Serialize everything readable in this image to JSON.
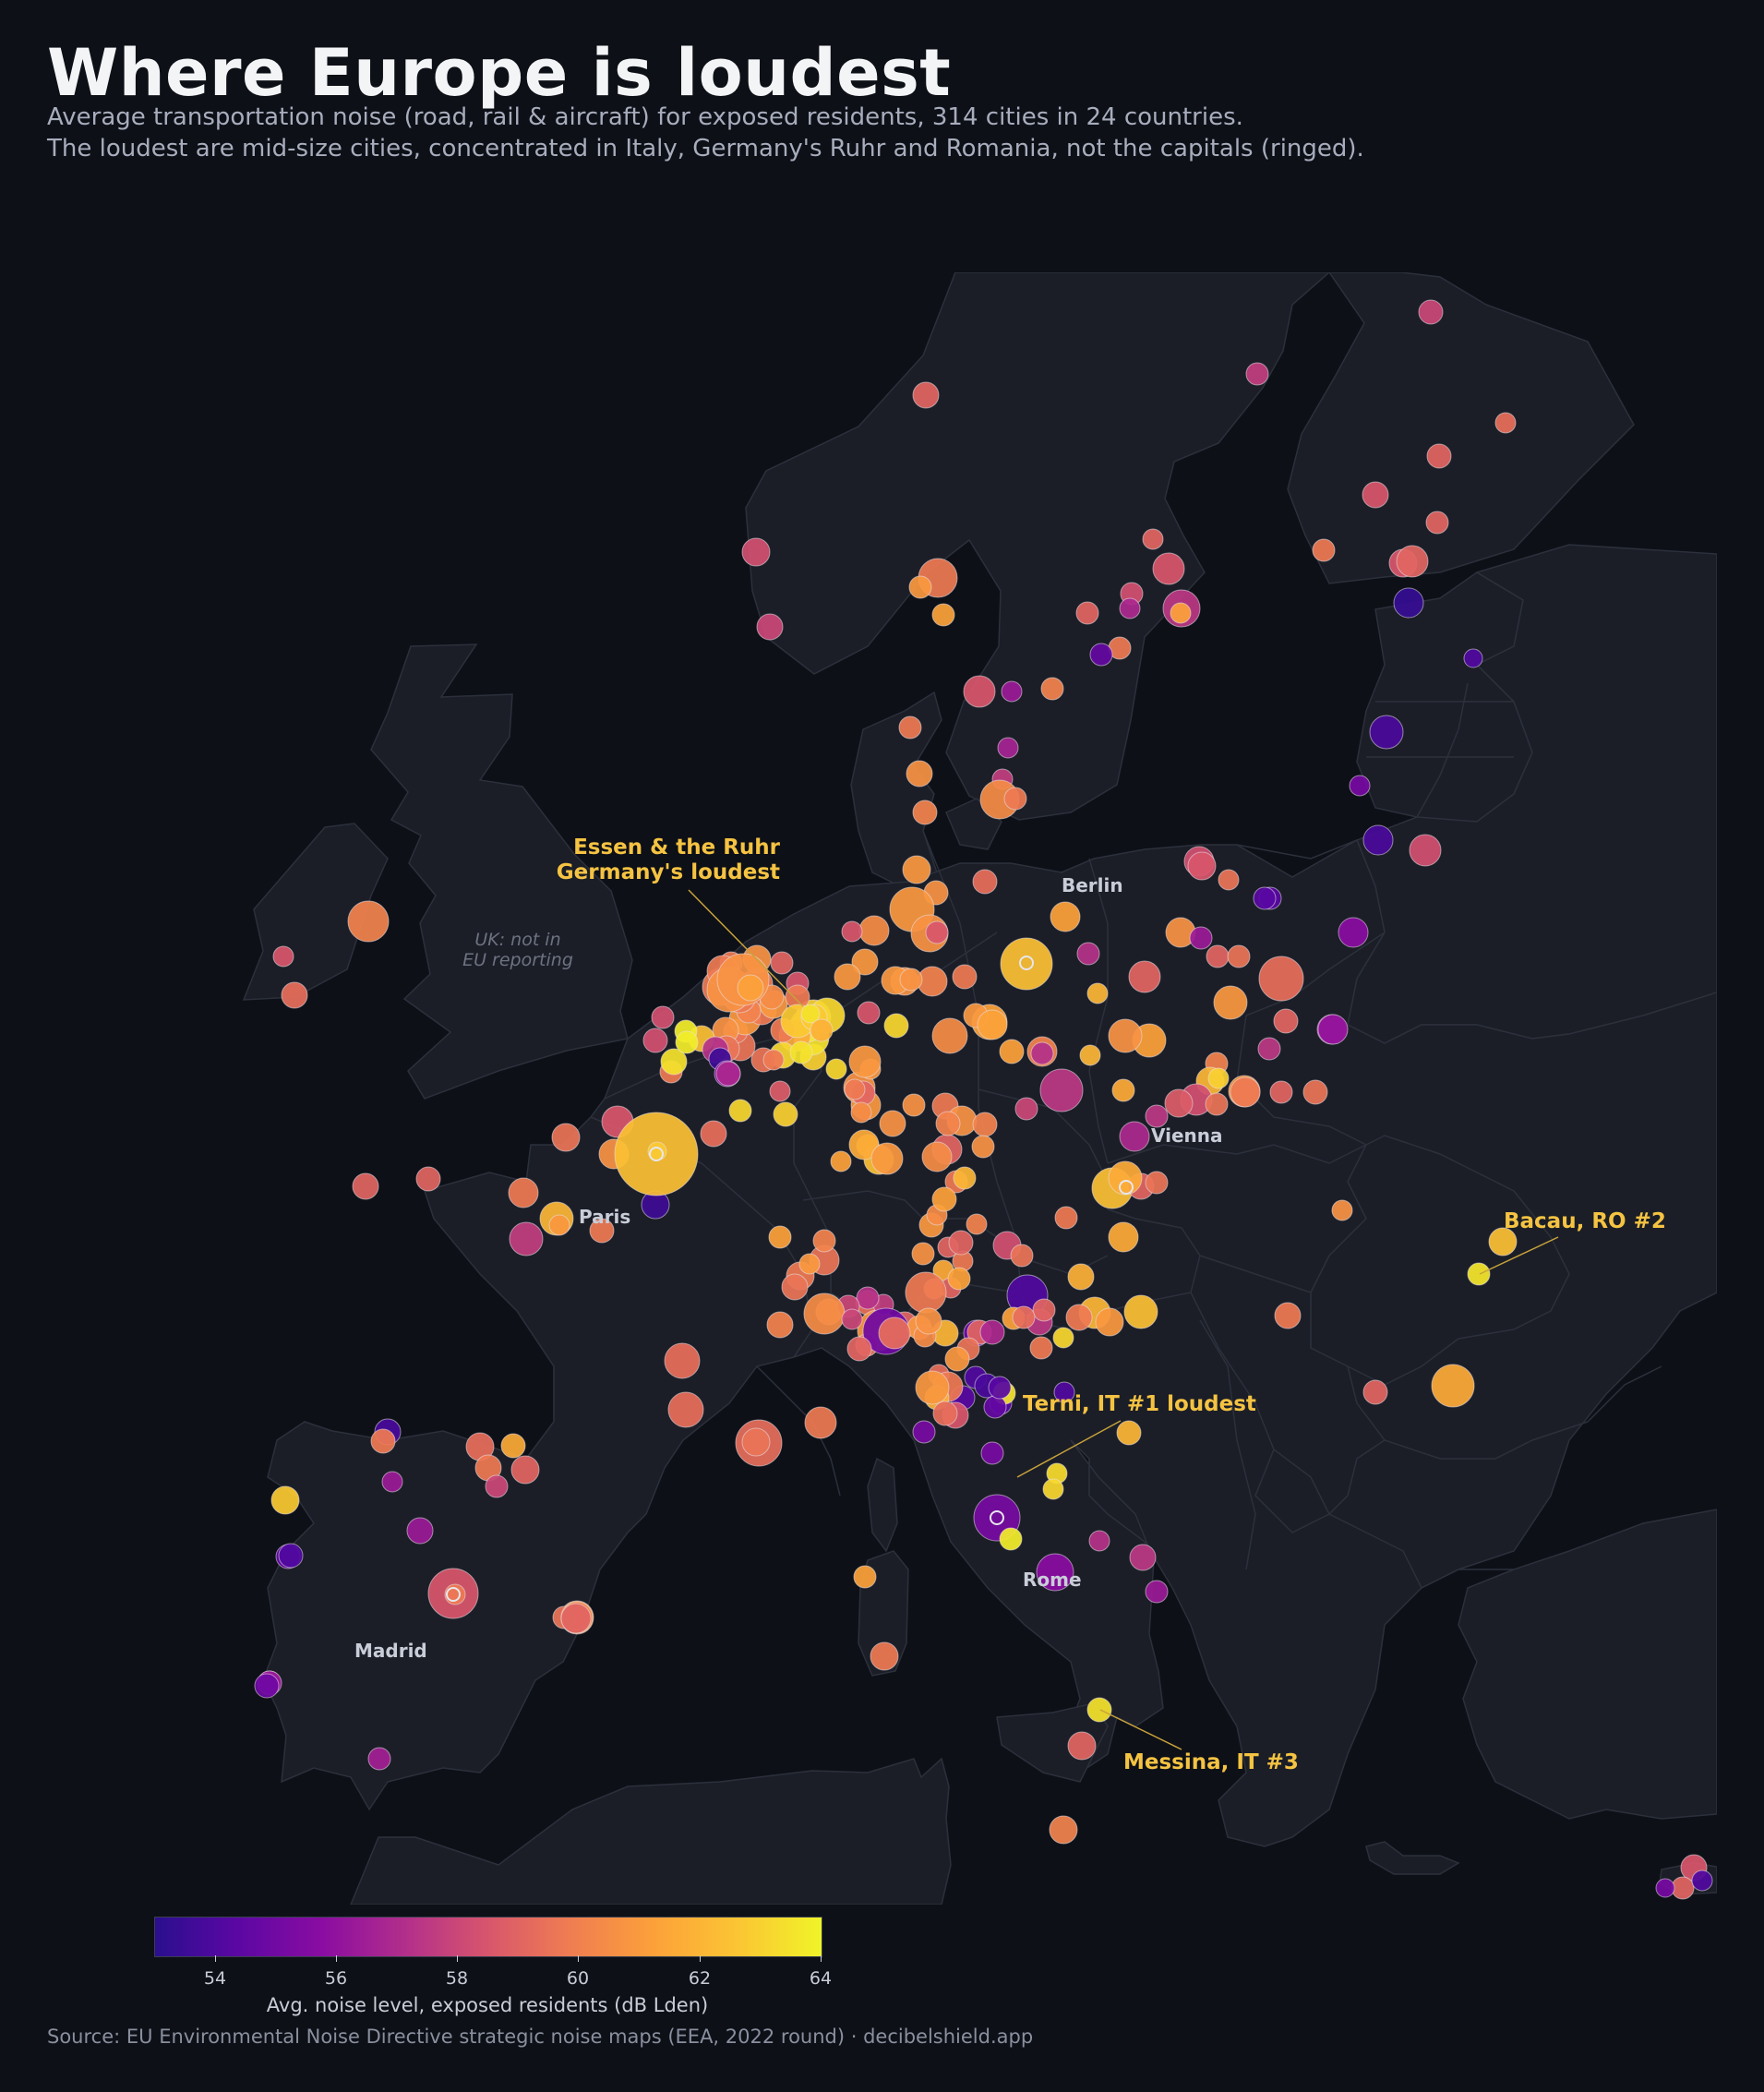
{
  "title": "Where Europe is loudest",
  "subtitle_line1": "Average transportation noise (road, rail & aircraft) for exposed residents, 314 cities in 24 countries.",
  "subtitle_line2": "The loudest are mid-size cities, concentrated in Italy, Germany's Ruhr and Romania, not the capitals (ringed).",
  "map": {
    "uk_note_line1": "UK: not in",
    "uk_note_line2": "EU reporting",
    "capitals": [
      "Berlin",
      "Paris",
      "Vienna",
      "Madrid",
      "Rome"
    ],
    "annotations": {
      "ruhr_line1": "Essen & the Ruhr",
      "ruhr_line2": "Germany's loudest",
      "terni": "Terni, IT  #1 loudest",
      "bacau": "Bacau, RO  #2",
      "messina": "Messina, IT  #3"
    },
    "colors": {
      "background": "#0d1017",
      "land": "#1b1e27",
      "border": "#2c303b",
      "annotation": "#f5c342",
      "capital_label": "#c9cdd8"
    }
  },
  "colorbar": {
    "min": 53,
    "max": 64,
    "ticks": [
      "54",
      "56",
      "58",
      "60",
      "62",
      "64"
    ],
    "label": "Avg. noise level, exposed residents  (dB Lden)"
  },
  "source": "Source: EU Environmental Noise Directive strategic noise maps (EEA, 2022 round) · decibelshield.app"
}
